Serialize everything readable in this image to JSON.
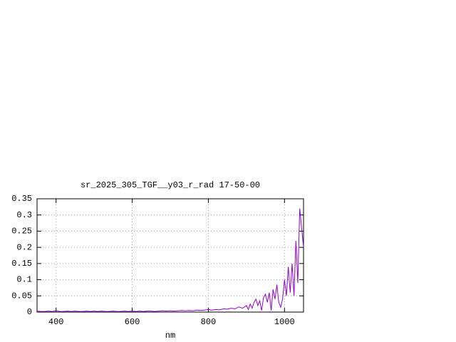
{
  "chart_data": {
    "type": "line",
    "title": "sr_2025_305_TGF__y03_r_rad 17-50-00",
    "xlabel": "nm",
    "color": "#9400d3",
    "grid": true,
    "xlim": [
      350,
      1050
    ],
    "ylim": [
      0,
      0.35
    ],
    "xticks": [
      400,
      600,
      800,
      1000
    ],
    "yticks": [
      0,
      0.05,
      0.1,
      0.15,
      0.2,
      0.25,
      0.3,
      0.35
    ],
    "x": [
      350,
      360,
      370,
      380,
      390,
      400,
      410,
      420,
      430,
      440,
      450,
      460,
      470,
      480,
      490,
      500,
      510,
      520,
      530,
      540,
      550,
      560,
      570,
      580,
      590,
      600,
      610,
      620,
      630,
      640,
      650,
      660,
      670,
      680,
      690,
      700,
      710,
      720,
      730,
      740,
      750,
      760,
      770,
      780,
      790,
      800,
      810,
      820,
      830,
      840,
      850,
      860,
      870,
      880,
      890,
      900,
      905,
      910,
      915,
      920,
      925,
      930,
      935,
      940,
      945,
      950,
      955,
      960,
      965,
      970,
      975,
      980,
      985,
      990,
      995,
      1000,
      1005,
      1010,
      1015,
      1020,
      1025,
      1030,
      1035,
      1040,
      1045,
      1050
    ],
    "values": [
      0.003,
      0.002,
      0.002,
      0.003,
      0.002,
      0.004,
      0.002,
      0.002,
      0.003,
      0.002,
      0.003,
      0.002,
      0.002,
      0.003,
      0.002,
      0.003,
      0.002,
      0.003,
      0.002,
      0.002,
      0.003,
      0.002,
      0.002,
      0.003,
      0.002,
      0.003,
      0.002,
      0.003,
      0.002,
      0.003,
      0.003,
      0.002,
      0.003,
      0.004,
      0.003,
      0.004,
      0.003,
      0.004,
      0.005,
      0.004,
      0.005,
      0.004,
      0.006,
      0.005,
      0.006,
      0.008,
      0.006,
      0.008,
      0.007,
      0.01,
      0.009,
      0.012,
      0.01,
      0.016,
      0.012,
      0.02,
      0.008,
      0.025,
      0.012,
      0.03,
      0.04,
      0.02,
      0.035,
      0.005,
      0.045,
      0.055,
      0.03,
      0.06,
      0.005,
      0.07,
      0.04,
      0.085,
      0.03,
      0.015,
      0.04,
      0.1,
      0.05,
      0.14,
      0.06,
      0.15,
      0.05,
      0.22,
      0.09,
      0.32,
      0.26,
      0.2
    ]
  }
}
